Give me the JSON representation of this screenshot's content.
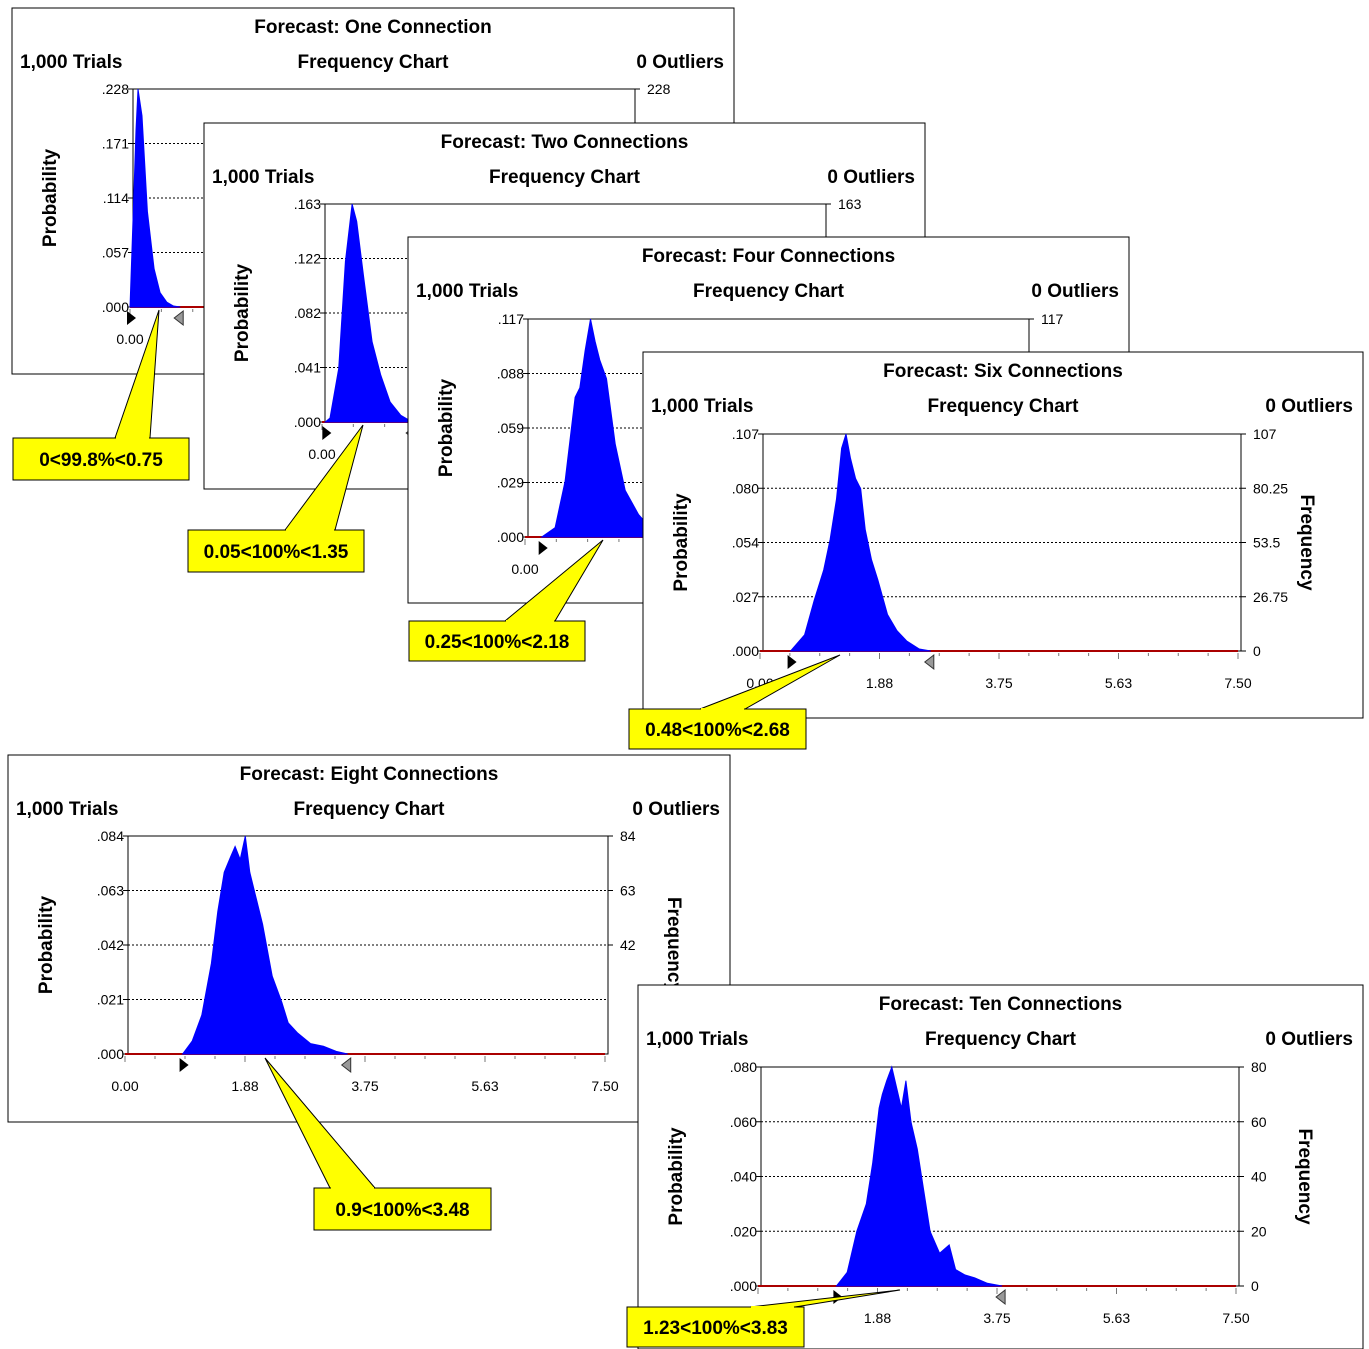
{
  "colors": {
    "fill": "#0000ff",
    "baseline": "#aa0000",
    "callout": "#ffff00",
    "frame": "#000000"
  },
  "chart_data": [
    {
      "type": "area",
      "title": "Forecast: One Connection",
      "subtitle": "Frequency Chart",
      "trials": "1,000 Trials",
      "outliers": "0 Outliers",
      "ylabel": "Probability",
      "y2label": "",
      "yticks": [
        ".228",
        ".171",
        ".114",
        ".057",
        ".000"
      ],
      "y2ticks": [
        "228"
      ],
      "xticks": [
        "0.00"
      ],
      "xlim": [
        0,
        7.5
      ],
      "ylim": [
        0,
        0.228
      ],
      "x": [
        0.0,
        0.05,
        0.09,
        0.12,
        0.18,
        0.26,
        0.36,
        0.45,
        0.55,
        0.65,
        0.75
      ],
      "y": [
        0.0,
        0.1,
        0.185,
        0.228,
        0.2,
        0.1,
        0.04,
        0.015,
        0.005,
        0.001,
        0.0
      ],
      "marker_left": 0.0,
      "marker_right": 0.75,
      "callout": "0<99.8%<0.75"
    },
    {
      "type": "area",
      "title": "Forecast: Two Connections",
      "subtitle": "Frequency Chart",
      "trials": "1,000 Trials",
      "outliers": "0 Outliers",
      "ylabel": "Probability",
      "y2label": "",
      "yticks": [
        ".163",
        ".122",
        ".082",
        ".041",
        ".000"
      ],
      "y2ticks": [
        "163"
      ],
      "xticks": [
        "0.00"
      ],
      "xlim": [
        0,
        7.5
      ],
      "ylim": [
        0,
        0.163
      ],
      "x": [
        0.05,
        0.12,
        0.25,
        0.35,
        0.45,
        0.52,
        0.62,
        0.75,
        0.88,
        1.02,
        1.18,
        1.35
      ],
      "y": [
        0.0,
        0.003,
        0.04,
        0.12,
        0.163,
        0.15,
        0.11,
        0.06,
        0.035,
        0.015,
        0.005,
        0.0
      ],
      "marker_left": 0.05,
      "marker_right": 1.35,
      "callout": "0.05<100%<1.35"
    },
    {
      "type": "area",
      "title": "Forecast: Four Connections",
      "subtitle": "Frequency Chart",
      "trials": "1,000 Trials",
      "outliers": "0 Outliers",
      "ylabel": "Probability",
      "y2label": "",
      "yticks": [
        ".117",
        ".088",
        ".059",
        ".029",
        ".000"
      ],
      "y2ticks": [
        "117"
      ],
      "xticks": [
        "0.00"
      ],
      "xlim": [
        0,
        7.5
      ],
      "ylim": [
        0,
        0.117
      ],
      "x": [
        0.25,
        0.45,
        0.6,
        0.75,
        0.82,
        0.9,
        0.98,
        1.05,
        1.12,
        1.22,
        1.35,
        1.5,
        1.7,
        1.9,
        2.18
      ],
      "y": [
        0.0,
        0.005,
        0.03,
        0.075,
        0.08,
        0.1,
        0.117,
        0.105,
        0.095,
        0.085,
        0.05,
        0.025,
        0.012,
        0.004,
        0.0
      ],
      "marker_left": 0.25,
      "marker_right": 2.18,
      "callout": "0.25<100%<2.18"
    },
    {
      "type": "area",
      "title": "Forecast: Six Connections",
      "subtitle": "Frequency Chart",
      "trials": "1,000 Trials",
      "outliers": "0 Outliers",
      "ylabel": "Probability",
      "y2label": "Frequency",
      "yticks": [
        ".107",
        ".080",
        ".054",
        ".027",
        ".000"
      ],
      "y2ticks": [
        "107",
        "80.25",
        "53.5",
        "26.75",
        "0"
      ],
      "xticks": [
        "0.00",
        "1.88",
        "3.75",
        "5.63",
        "7.50"
      ],
      "xlim": [
        0,
        7.5
      ],
      "ylim": [
        0,
        0.107
      ],
      "x": [
        0.48,
        0.7,
        0.85,
        1.0,
        1.1,
        1.2,
        1.28,
        1.35,
        1.42,
        1.5,
        1.58,
        1.65,
        1.75,
        1.85,
        2.0,
        2.15,
        2.3,
        2.5,
        2.68
      ],
      "y": [
        0.0,
        0.008,
        0.025,
        0.04,
        0.055,
        0.075,
        0.1,
        0.107,
        0.095,
        0.085,
        0.08,
        0.06,
        0.045,
        0.035,
        0.018,
        0.01,
        0.005,
        0.001,
        0.0
      ],
      "marker_left": 0.48,
      "marker_right": 2.68,
      "callout": "0.48<100%<2.68"
    },
    {
      "type": "area",
      "title": "Forecast: Eight Connections",
      "subtitle": "Frequency Chart",
      "trials": "1,000 Trials",
      "outliers": "0 Outliers",
      "ylabel": "Probability",
      "y2label": "Frequency",
      "yticks": [
        ".084",
        ".063",
        ".042",
        ".021",
        ".000"
      ],
      "y2ticks": [
        "84",
        "63",
        "42"
      ],
      "xticks": [
        "0.00",
        "1.88",
        "3.75",
        "5.63",
        "7.50"
      ],
      "xlim": [
        0,
        7.5
      ],
      "ylim": [
        0,
        0.084
      ],
      "x": [
        0.9,
        1.05,
        1.2,
        1.35,
        1.45,
        1.55,
        1.65,
        1.72,
        1.8,
        1.88,
        1.95,
        2.05,
        2.15,
        2.3,
        2.45,
        2.55,
        2.7,
        2.9,
        3.1,
        3.3,
        3.48
      ],
      "y": [
        0.0,
        0.005,
        0.015,
        0.035,
        0.055,
        0.07,
        0.076,
        0.08,
        0.075,
        0.084,
        0.07,
        0.06,
        0.05,
        0.03,
        0.02,
        0.012,
        0.008,
        0.004,
        0.003,
        0.001,
        0.0
      ],
      "marker_left": 0.9,
      "marker_right": 3.48,
      "callout": "0.9<100%<3.48"
    },
    {
      "type": "area",
      "title": "Forecast: Ten Connections",
      "subtitle": "Frequency Chart",
      "trials": "1,000 Trials",
      "outliers": "0 Outliers",
      "ylabel": "Probability",
      "y2label": "Frequency",
      "yticks": [
        ".080",
        ".060",
        ".040",
        ".020",
        ".000"
      ],
      "y2ticks": [
        "80",
        "60",
        "40",
        "20",
        "0"
      ],
      "xticks": [
        "0.00",
        "1.88",
        "3.75",
        "5.63",
        "7.50"
      ],
      "xlim": [
        0,
        7.5
      ],
      "ylim": [
        0,
        0.08
      ],
      "x": [
        1.23,
        1.4,
        1.55,
        1.7,
        1.8,
        1.9,
        1.95,
        2.02,
        2.1,
        2.18,
        2.25,
        2.32,
        2.4,
        2.5,
        2.6,
        2.7,
        2.85,
        3.0,
        3.1,
        3.25,
        3.4,
        3.6,
        3.83
      ],
      "y": [
        0.0,
        0.005,
        0.02,
        0.03,
        0.045,
        0.065,
        0.07,
        0.075,
        0.08,
        0.072,
        0.065,
        0.075,
        0.06,
        0.05,
        0.035,
        0.02,
        0.012,
        0.015,
        0.006,
        0.004,
        0.003,
        0.001,
        0.0
      ],
      "marker_left": 1.23,
      "marker_right": 3.83,
      "callout": "1.23<100%<3.83"
    }
  ]
}
